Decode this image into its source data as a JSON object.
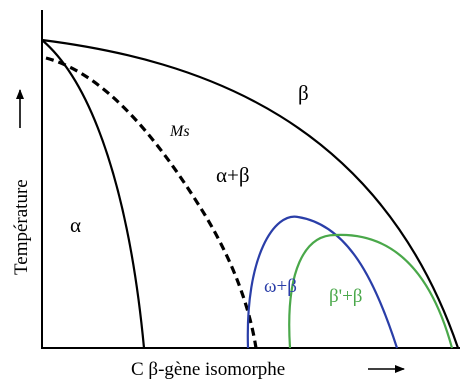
{
  "axes": {
    "x_label": "C β-gène isomorphe",
    "y_label": "Température"
  },
  "phases": {
    "beta": "β",
    "alpha_beta": "α+β",
    "alpha": "α",
    "omega_beta": "ω+β",
    "beta_prime_beta": "β'+β",
    "ms": "Ms"
  },
  "colors": {
    "phase_boundary": "#000000",
    "omega_curve": "#2a3ea8",
    "beta_prime_curve": "#4aa84a"
  }
}
